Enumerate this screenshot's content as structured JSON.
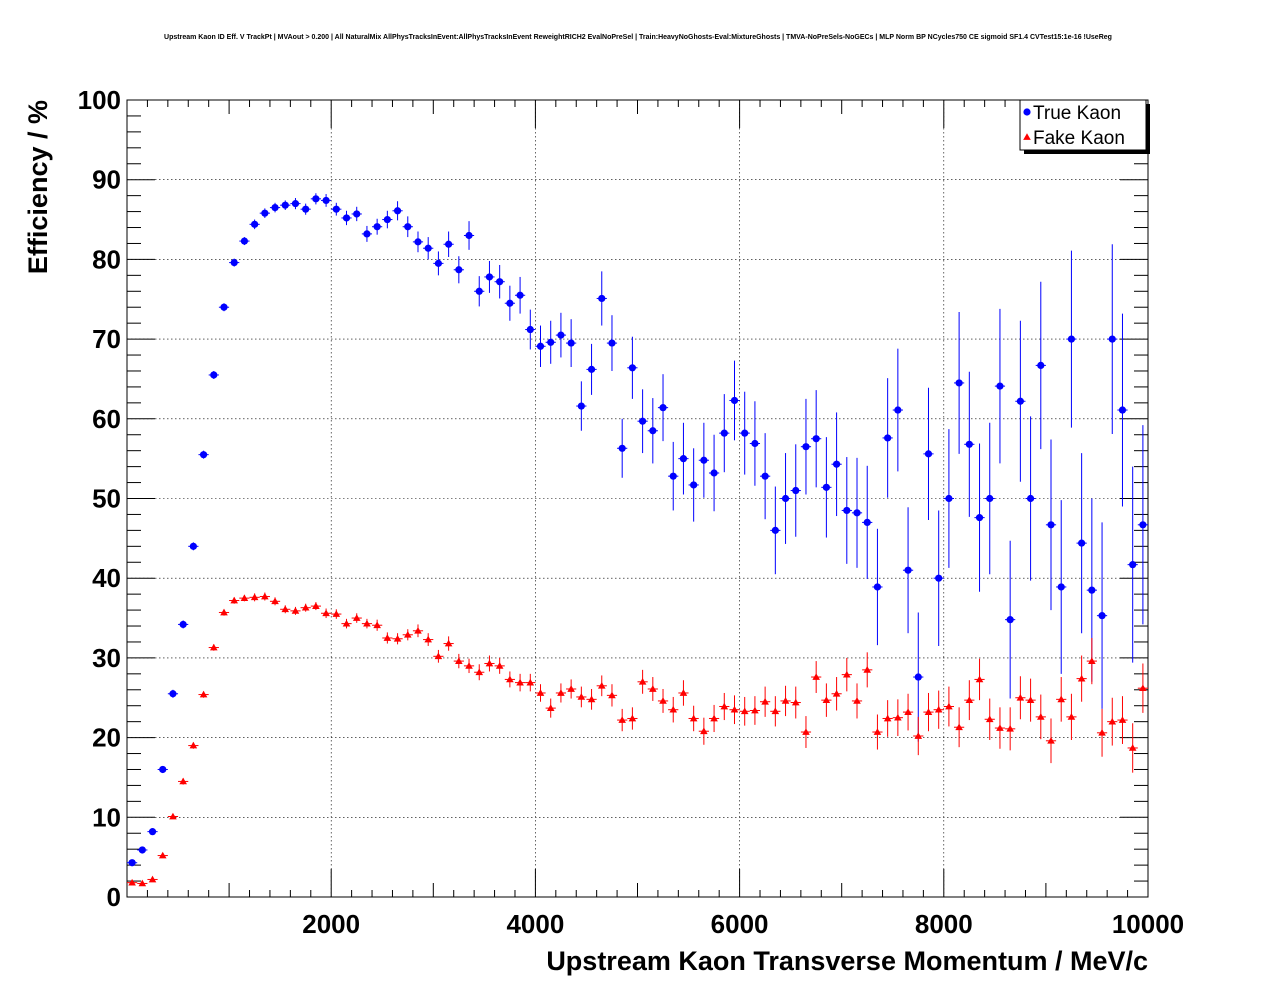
{
  "chart_data": {
    "type": "scatter",
    "title": "Upstream Kaon ID Eff. V TrackPt | MVAout > 0.200 | All NaturalMix AllPhysTracksInEvent:AllPhysTracksInEvent ReweightRICH2 EvalNoPreSel | Train:HeavyNoGhosts-Eval:MixtureGhosts | TMVA-NoPreSels-NoGECs | MLP Norm BP NCycles750 CE sigmoid SF1.4 CVTest15:1e-16 !UseReg",
    "xlabel": "Upstream Kaon Transverse Momentum / MeV/c",
    "ylabel": "Efficiency / %",
    "xlim": [
      0,
      10000
    ],
    "ylim": [
      0,
      100
    ],
    "x_ticks": [
      2000,
      4000,
      6000,
      8000,
      10000
    ],
    "y_ticks": [
      0,
      10,
      20,
      30,
      40,
      50,
      60,
      70,
      80,
      90,
      100
    ],
    "x_tick_labels": [
      "2000",
      "4000",
      "6000",
      "8000",
      "10000"
    ],
    "y_tick_labels": [
      "0",
      "10",
      "20",
      "30",
      "40",
      "50",
      "60",
      "70",
      "80",
      "90",
      "100"
    ],
    "grid": true,
    "legend_position": "top-right",
    "x": [
      50,
      150,
      250,
      350,
      450,
      550,
      650,
      750,
      850,
      950,
      1050,
      1150,
      1250,
      1350,
      1450,
      1550,
      1650,
      1750,
      1850,
      1950,
      2050,
      2150,
      2250,
      2350,
      2450,
      2550,
      2650,
      2750,
      2850,
      2950,
      3050,
      3150,
      3250,
      3350,
      3450,
      3550,
      3650,
      3750,
      3850,
      3950,
      4050,
      4150,
      4250,
      4350,
      4450,
      4550,
      4650,
      4750,
      4850,
      4950,
      5050,
      5150,
      5250,
      5350,
      5450,
      5550,
      5650,
      5750,
      5850,
      5950,
      6050,
      6150,
      6250,
      6350,
      6450,
      6550,
      6650,
      6750,
      6850,
      6950,
      7050,
      7150,
      7250,
      7350,
      7450,
      7550,
      7650,
      7750,
      7850,
      7950,
      8050,
      8150,
      8250,
      8350,
      8450,
      8550,
      8650,
      8750,
      8850,
      8950,
      9050,
      9150,
      9250,
      9350,
      9450,
      9550,
      9650,
      9750,
      9850,
      9950
    ],
    "series": [
      {
        "name": "True Kaon",
        "color": "#0000ff",
        "marker": "circle",
        "values": [
          4.3,
          5.9,
          8.2,
          16.0,
          25.5,
          34.2,
          44.0,
          55.5,
          65.5,
          74.0,
          79.6,
          82.3,
          84.4,
          85.8,
          86.5,
          86.8,
          87.0,
          86.3,
          87.6,
          87.4,
          86.3,
          85.2,
          85.7,
          83.2,
          84.1,
          85.0,
          86.1,
          84.1,
          82.2,
          81.4,
          79.5,
          81.9,
          78.7,
          83.0,
          76.0,
          77.8,
          77.2,
          74.5,
          75.5,
          71.2,
          69.1,
          69.6,
          70.5,
          69.5,
          61.6,
          66.2,
          75.1,
          69.5,
          56.3,
          66.4,
          59.7,
          58.5,
          61.4,
          52.8,
          55.0,
          51.7,
          54.8,
          53.2,
          58.2,
          62.3,
          58.2,
          56.9,
          52.8,
          46.0,
          50.0,
          51.0,
          56.5,
          57.5,
          51.4,
          54.3,
          48.5,
          48.2,
          47.0,
          38.9,
          57.6,
          61.1,
          41.0,
          27.6,
          55.6,
          40.0,
          50.0,
          64.5,
          56.8,
          47.6,
          50.0,
          64.1,
          34.8,
          62.2,
          50.0,
          66.7,
          46.7,
          38.9,
          70.0,
          44.4,
          38.5,
          35.3,
          70.0,
          61.1,
          41.7,
          46.7
        ],
        "errors": [
          0.3,
          0.3,
          0.4,
          0.4,
          0.5,
          0.5,
          0.5,
          0.5,
          0.5,
          0.5,
          0.5,
          0.5,
          0.6,
          0.6,
          0.6,
          0.6,
          0.7,
          0.7,
          0.7,
          0.8,
          0.8,
          0.9,
          0.9,
          1.0,
          1.0,
          1.1,
          1.2,
          1.3,
          1.3,
          1.4,
          1.5,
          1.6,
          1.7,
          1.8,
          1.9,
          2.0,
          2.1,
          2.2,
          2.3,
          2.5,
          2.6,
          2.7,
          2.8,
          3.0,
          3.1,
          3.2,
          3.4,
          3.5,
          3.7,
          3.9,
          4.0,
          4.1,
          4.2,
          4.3,
          4.5,
          4.6,
          4.7,
          4.8,
          4.9,
          5.0,
          5.2,
          5.3,
          5.4,
          5.5,
          5.7,
          5.8,
          6.0,
          6.1,
          6.3,
          6.5,
          6.7,
          6.9,
          7.1,
          7.3,
          7.5,
          7.7,
          7.9,
          8.1,
          8.3,
          8.5,
          8.7,
          8.9,
          9.1,
          9.3,
          9.5,
          9.7,
          9.9,
          10.1,
          10.3,
          10.5,
          10.7,
          10.9,
          11.1,
          11.3,
          11.5,
          11.7,
          11.9,
          12.1,
          12.3,
          12.5
        ]
      },
      {
        "name": "Fake Kaon",
        "color": "#ff0000",
        "marker": "triangle",
        "values": [
          1.8,
          1.7,
          2.2,
          5.2,
          10.1,
          14.5,
          19.0,
          25.4,
          31.3,
          35.7,
          37.2,
          37.5,
          37.6,
          37.7,
          37.1,
          36.1,
          35.9,
          36.3,
          36.5,
          35.6,
          35.5,
          34.3,
          35.0,
          34.3,
          34.1,
          32.5,
          32.4,
          32.9,
          33.4,
          32.3,
          30.2,
          31.8,
          29.6,
          29.0,
          28.2,
          29.3,
          29.0,
          27.3,
          26.9,
          26.9,
          25.6,
          23.7,
          25.6,
          26.1,
          25.1,
          24.8,
          26.5,
          25.3,
          22.2,
          22.4,
          27.0,
          26.1,
          24.6,
          23.5,
          25.6,
          22.4,
          20.8,
          22.4,
          23.9,
          23.5,
          23.3,
          23.4,
          24.5,
          23.3,
          24.6,
          24.4,
          20.7,
          27.6,
          24.7,
          25.5,
          27.9,
          24.6,
          28.5,
          20.7,
          22.4,
          22.5,
          23.2,
          20.2,
          23.2,
          23.5,
          23.9,
          21.3,
          24.7,
          27.3,
          22.3,
          21.2,
          21.1,
          25.0,
          24.7,
          22.6,
          19.6,
          24.8,
          22.6,
          27.4,
          29.6,
          20.6,
          22.0,
          22.2,
          18.7,
          26.2
        ],
        "errors": [
          0.2,
          0.2,
          0.3,
          0.3,
          0.3,
          0.4,
          0.4,
          0.4,
          0.4,
          0.4,
          0.4,
          0.4,
          0.5,
          0.5,
          0.5,
          0.5,
          0.5,
          0.5,
          0.5,
          0.6,
          0.6,
          0.6,
          0.6,
          0.6,
          0.7,
          0.7,
          0.7,
          0.7,
          0.8,
          0.8,
          0.8,
          0.9,
          0.9,
          0.9,
          1.0,
          1.0,
          1.0,
          1.0,
          1.1,
          1.1,
          1.1,
          1.2,
          1.2,
          1.2,
          1.3,
          1.3,
          1.3,
          1.4,
          1.4,
          1.4,
          1.5,
          1.5,
          1.5,
          1.6,
          1.6,
          1.6,
          1.7,
          1.7,
          1.7,
          1.8,
          1.8,
          1.8,
          1.9,
          1.9,
          1.9,
          2.0,
          2.0,
          2.0,
          2.1,
          2.1,
          2.1,
          2.2,
          2.2,
          2.2,
          2.3,
          2.3,
          2.3,
          2.4,
          2.4,
          2.4,
          2.5,
          2.5,
          2.5,
          2.6,
          2.6,
          2.6,
          2.7,
          2.7,
          2.7,
          2.8,
          2.8,
          2.8,
          2.9,
          2.9,
          2.9,
          3.0,
          3.0,
          3.0,
          3.1,
          3.1
        ]
      }
    ]
  }
}
